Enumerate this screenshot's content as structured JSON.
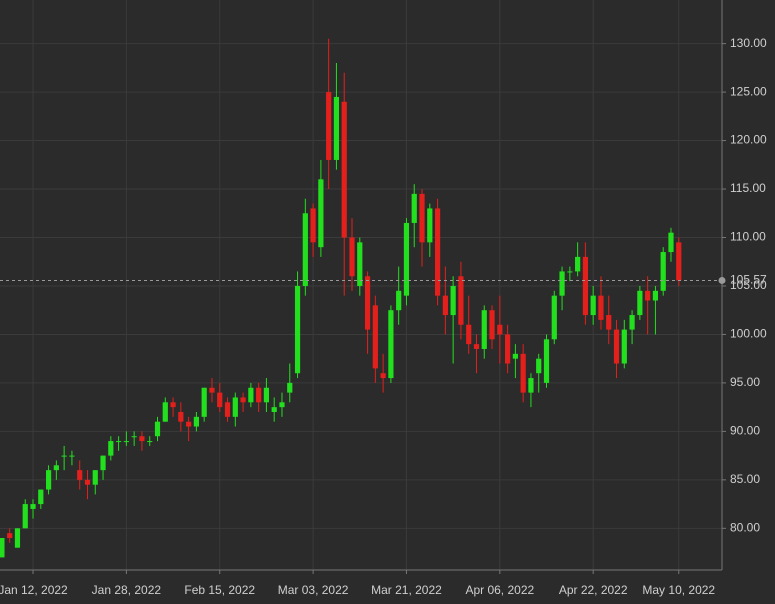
{
  "chart_data": {
    "type": "candlestick",
    "up_color": "#22e01e",
    "down_color": "#e3201c",
    "grid": true,
    "ylim": [
      75.7,
      134.5
    ],
    "yticks": [
      {
        "value": 80,
        "label": "80.00"
      },
      {
        "value": 85,
        "label": "85.00"
      },
      {
        "value": 90,
        "label": "90.00"
      },
      {
        "value": 95,
        "label": "95.00"
      },
      {
        "value": 100,
        "label": "100.00"
      },
      {
        "value": 105,
        "label": "105.00"
      },
      {
        "value": 110,
        "label": "110.00"
      },
      {
        "value": 115,
        "label": "115.00"
      },
      {
        "value": 120,
        "label": "120.00"
      },
      {
        "value": 125,
        "label": "125.00"
      },
      {
        "value": 130,
        "label": "130.00"
      }
    ],
    "last_price": 105.57,
    "categories": [
      null,
      null,
      null,
      null,
      "Jan 12, 2022",
      null,
      null,
      null,
      null,
      null,
      null,
      null,
      null,
      null,
      null,
      null,
      "Jan 28, 2022",
      null,
      null,
      null,
      null,
      null,
      null,
      null,
      null,
      null,
      null,
      null,
      "Feb 15, 2022",
      null,
      null,
      null,
      null,
      null,
      null,
      null,
      null,
      null,
      null,
      null,
      "Mar 03, 2022",
      null,
      null,
      null,
      null,
      null,
      null,
      null,
      null,
      null,
      null,
      null,
      "Mar 21, 2022",
      null,
      null,
      null,
      null,
      null,
      null,
      null,
      null,
      null,
      null,
      null,
      "Apr 06, 2022",
      null,
      null,
      null,
      null,
      null,
      null,
      null,
      null,
      null,
      null,
      null,
      "Apr 22, 2022",
      null,
      null,
      null,
      null,
      null,
      null,
      null,
      null,
      null,
      null,
      "May 10, 2022"
    ],
    "open": [
      77,
      79.5,
      78,
      80,
      82,
      82.5,
      84,
      86,
      87.5,
      87.5,
      86,
      85,
      84.5,
      86,
      87.5,
      89,
      89,
      89.5,
      89.5,
      89,
      89.5,
      91,
      93,
      92,
      91,
      90.5,
      91.5,
      94.5,
      94,
      93,
      91.5,
      93.5,
      93,
      94.5,
      93,
      92,
      92.5,
      94,
      96,
      105,
      113,
      109,
      125,
      118,
      124,
      110,
      105,
      106,
      103,
      96,
      95.5,
      102.5,
      104,
      111.5,
      114.5,
      109.5,
      113,
      104,
      102,
      106,
      101,
      99,
      98.5,
      102.5,
      101,
      100,
      97.5,
      98,
      94,
      96,
      95,
      99.5,
      104,
      106.5,
      106.5,
      108,
      102,
      104,
      102,
      100.5,
      97,
      100.5,
      102,
      104.5,
      103.5,
      104.5,
      108.5,
      109.5
    ],
    "high": [
      79,
      80,
      80,
      83,
      83,
      84,
      86.5,
      87,
      88.5,
      88,
      87,
      86,
      86,
      87.5,
      89.5,
      89.5,
      90,
      90,
      90,
      89.5,
      91.5,
      93.5,
      93.5,
      93,
      91.5,
      92,
      94.5,
      95.5,
      95,
      93.5,
      94,
      94,
      95,
      95,
      95.5,
      93.5,
      94,
      97,
      106.5,
      114,
      113.5,
      118,
      130.5,
      128,
      127,
      112,
      110,
      106.5,
      104,
      98,
      103,
      107,
      112,
      115.5,
      115,
      113.5,
      114,
      107,
      106,
      107.5,
      104,
      100,
      103,
      103,
      104,
      101,
      99,
      99,
      96,
      98,
      100,
      104.5,
      107,
      107,
      109.5,
      109.5,
      105,
      106,
      104,
      101.5,
      101.5,
      102.5,
      105,
      106,
      105,
      109,
      111,
      110
    ],
    "low": [
      77,
      78.5,
      78,
      80,
      81,
      82,
      83.5,
      85,
      86,
      86.5,
      84,
      83,
      83.5,
      85,
      87,
      88,
      88.5,
      88.5,
      88,
      88.5,
      89,
      91,
      91.5,
      90,
      89,
      90,
      91,
      93,
      92,
      91,
      90.5,
      92,
      92.5,
      92,
      92,
      91,
      91.5,
      93,
      95.5,
      104,
      108,
      108,
      115,
      117,
      104,
      104.5,
      104,
      98,
      95,
      94,
      95,
      101,
      103,
      109,
      107,
      108,
      103,
      100,
      97,
      99.5,
      98,
      96,
      97.5,
      98.5,
      97,
      96,
      95.5,
      93,
      92.5,
      94,
      94.5,
      99,
      102.5,
      105.5,
      106,
      101,
      101,
      100.5,
      99,
      95.5,
      96.5,
      99,
      101.5,
      100,
      100,
      104,
      107.5,
      105
    ],
    "close": [
      79,
      79,
      80,
      82.5,
      82.5,
      84,
      86,
      86.5,
      87.5,
      87.5,
      85,
      84.5,
      86,
      87.5,
      89,
      89,
      89,
      89.5,
      89,
      89,
      91,
      93,
      92.5,
      91,
      90.5,
      91.5,
      94.5,
      94,
      92.5,
      91.5,
      93.5,
      93,
      94.5,
      93,
      94.5,
      92.5,
      93,
      95,
      105,
      112.5,
      109.5,
      116,
      118,
      124.5,
      110,
      106,
      109.5,
      100.5,
      96.5,
      95.5,
      102.5,
      104.5,
      111.5,
      114.5,
      109.5,
      113,
      104,
      102,
      105,
      101,
      99,
      98.5,
      102.5,
      99.5,
      100,
      97,
      98,
      94,
      95.5,
      97.5,
      99.5,
      104,
      106.5,
      106.5,
      108,
      102,
      104,
      101.5,
      100.5,
      97,
      100.5,
      102,
      104.5,
      103.5,
      104.5,
      108.5,
      110.5,
      105.57
    ]
  }
}
